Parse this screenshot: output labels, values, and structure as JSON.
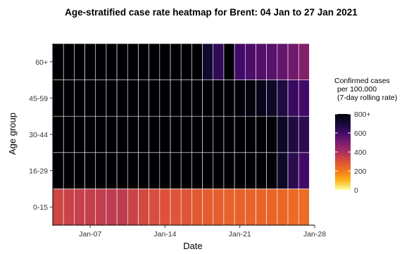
{
  "chart_data": {
    "type": "heatmap",
    "title": "Age-stratified case rate heatmap for Brent: 04 Jan to 27 Jan 2021",
    "xlabel": "Date",
    "ylabel": "Age group",
    "x_start": "2021-01-04",
    "x_end": "2021-01-27",
    "x_ticks": [
      "Jan-07",
      "Jan-14",
      "Jan-21",
      "Jan-28"
    ],
    "x_tick_dates": [
      "2021-01-07",
      "2021-01-14",
      "2021-01-21",
      "2021-01-28"
    ],
    "y_categories": [
      "0-15",
      "16-29",
      "30-44",
      "45-59",
      "60+"
    ],
    "values": {
      "60+": [
        800,
        800,
        800,
        800,
        800,
        800,
        800,
        800,
        800,
        800,
        800,
        800,
        800,
        800,
        720,
        640,
        800,
        600,
        580,
        570,
        560,
        540,
        520,
        480
      ],
      "45-59": [
        800,
        800,
        800,
        800,
        800,
        800,
        800,
        800,
        800,
        800,
        800,
        800,
        800,
        800,
        800,
        800,
        800,
        790,
        780,
        760,
        730,
        680,
        620,
        600
      ],
      "30-44": [
        800,
        800,
        800,
        800,
        800,
        800,
        800,
        800,
        800,
        800,
        800,
        800,
        800,
        800,
        800,
        800,
        800,
        800,
        800,
        800,
        790,
        740,
        680,
        650
      ],
      "16-29": [
        800,
        800,
        800,
        800,
        800,
        800,
        800,
        800,
        800,
        800,
        800,
        800,
        800,
        800,
        800,
        800,
        800,
        800,
        800,
        800,
        790,
        730,
        650,
        600
      ],
      "0-15": [
        330,
        340,
        345,
        350,
        355,
        360,
        360,
        340,
        320,
        310,
        300,
        290,
        290,
        280,
        270,
        265,
        260,
        255,
        250,
        250,
        245,
        240,
        235,
        230
      ]
    },
    "legend": {
      "title_lines": [
        "Confirmed cases",
        "per 100,000",
        "(7-day rolling rate)"
      ],
      "ticks": [
        {
          "value": 0,
          "label": "0"
        },
        {
          "value": 200,
          "label": "200"
        },
        {
          "value": 400,
          "label": "400"
        },
        {
          "value": 600,
          "label": "600"
        },
        {
          "value": 800,
          "label": "800+"
        }
      ],
      "range": [
        0,
        800
      ],
      "colors": [
        "#fcffa4",
        "#fcb519",
        "#f37819",
        "#dd513a",
        "#a92e5e",
        "#7a1d6d",
        "#420a68",
        "#160b39",
        "#000004"
      ]
    }
  }
}
